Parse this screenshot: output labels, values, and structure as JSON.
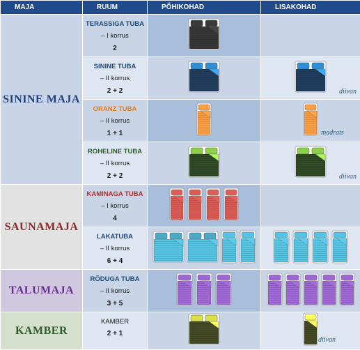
{
  "header": {
    "col_maja": "MAJA",
    "col_ruum": "RUUM",
    "col_pohikohad": "PÕHIKOHAD",
    "col_lisakohad": "LISAKOHAD"
  },
  "groups": [
    {
      "name": "SININE MAJA",
      "color": "#1f3f7a"
    },
    {
      "name": "SAUNAMAJA",
      "color": "#8b2a2a"
    },
    {
      "name": "TALUMAJA",
      "color": "#6a2f8f"
    },
    {
      "name": "KAMBER",
      "color": "#2f5a2a"
    }
  ],
  "rooms": [
    {
      "name": "TERASSIGA TUBA",
      "floor": "– I korrus",
      "count": "2",
      "name_color": "#1f4b7a",
      "bed_color": "#2f2f2f",
      "pillow_color": "#3a3a3a",
      "extra": ""
    },
    {
      "name": "SININE TUBA",
      "floor": "– II korrus",
      "count": "2 + 2",
      "name_color": "#1f4b7a",
      "bed_color": "#1c3550",
      "pillow_color": "#2f8fd6",
      "extra": "diivan"
    },
    {
      "name": "ORANZ TUBA",
      "floor": "– II korrus",
      "count": "1 + 1",
      "name_color": "#e07a20",
      "bed_color": "#e88a3a",
      "pillow_color": "#e88a3a",
      "extra": "madrats"
    },
    {
      "name": "ROHELINE TUBA",
      "floor": "– II korrus",
      "count": "2 + 2",
      "name_color": "#2f5a2a",
      "bed_color": "#2a3f20",
      "pillow_color": "#8fd04a",
      "extra": "diivan"
    },
    {
      "name": "KAMINAGA  TUBA",
      "floor": "– I korrus",
      "count": "4",
      "name_color": "#b03030",
      "bed_color": "#c0504a",
      "pillow_color": "#c0504a",
      "extra": ""
    },
    {
      "name": "LAKATUBA",
      "floor": "– II korrus",
      "count": "6 + 4",
      "name_color": "#1f4b7a",
      "bed_color": "#4aaac8",
      "pillow_color": "#4aaac8",
      "extra": ""
    },
    {
      "name": "RÕDUGA TUBA",
      "floor": "– II korrus",
      "count": "3 + 5",
      "name_color": "#1f4b7a",
      "bed_color": "#8a5ab8",
      "pillow_color": "#8a5ab8",
      "extra": ""
    },
    {
      "name": "KAMBER",
      "floor": "",
      "count": "2 + 1",
      "name_color": "#1a1a1a",
      "bed_color": "#3a4020",
      "pillow_color": "#d8e04a",
      "extra": "diivan"
    }
  ]
}
